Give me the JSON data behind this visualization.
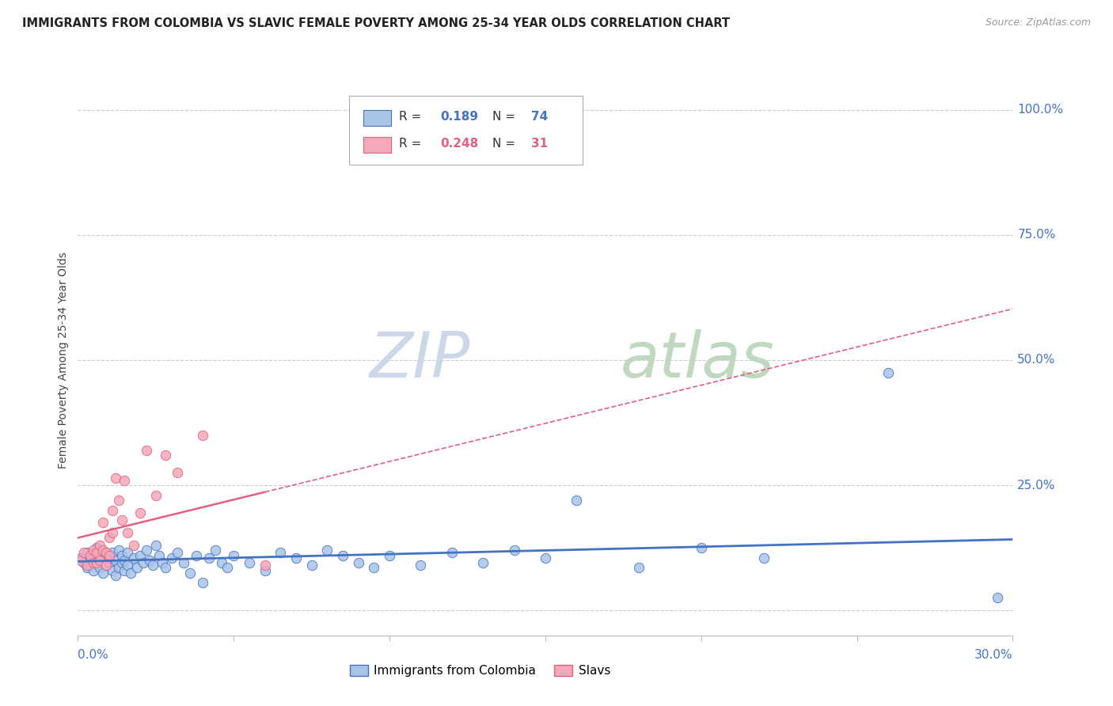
{
  "title": "IMMIGRANTS FROM COLOMBIA VS SLAVIC FEMALE POVERTY AMONG 25-34 YEAR OLDS CORRELATION CHART",
  "source": "Source: ZipAtlas.com",
  "ylabel": "Female Poverty Among 25-34 Year Olds",
  "xlim": [
    0.0,
    0.3
  ],
  "ylim": [
    -0.05,
    1.05
  ],
  "colombia_color": "#aac4e8",
  "slavs_color": "#f4a8b8",
  "colombia_edge_color": "#4472c4",
  "slavs_edge_color": "#e06080",
  "colombia_line_color": "#4472c4",
  "slavs_line_color": "#e06080",
  "yticks": [
    0.0,
    0.25,
    0.5,
    0.75,
    1.0
  ],
  "ytick_labels": [
    "",
    "25.0%",
    "50.0%",
    "75.0%",
    "100.0%"
  ],
  "grid_color": "#cccccc",
  "background_color": "#ffffff",
  "watermark_zip": "ZIP",
  "watermark_atlas": "atlas",
  "watermark_color_zip": "#d0dce8",
  "watermark_color_atlas": "#c8d8c8",
  "colombia_x": [
    0.001,
    0.002,
    0.003,
    0.003,
    0.004,
    0.004,
    0.005,
    0.005,
    0.006,
    0.006,
    0.007,
    0.007,
    0.008,
    0.008,
    0.009,
    0.009,
    0.01,
    0.01,
    0.011,
    0.011,
    0.012,
    0.012,
    0.013,
    0.013,
    0.014,
    0.014,
    0.015,
    0.015,
    0.016,
    0.016,
    0.017,
    0.018,
    0.019,
    0.02,
    0.021,
    0.022,
    0.023,
    0.024,
    0.025,
    0.026,
    0.027,
    0.028,
    0.03,
    0.032,
    0.034,
    0.036,
    0.038,
    0.04,
    0.042,
    0.044,
    0.046,
    0.048,
    0.05,
    0.055,
    0.06,
    0.065,
    0.07,
    0.075,
    0.08,
    0.085,
    0.09,
    0.095,
    0.1,
    0.11,
    0.12,
    0.13,
    0.14,
    0.15,
    0.16,
    0.18,
    0.2,
    0.22,
    0.26,
    0.295
  ],
  "colombia_y": [
    0.105,
    0.095,
    0.085,
    0.115,
    0.1,
    0.09,
    0.11,
    0.08,
    0.125,
    0.095,
    0.085,
    0.105,
    0.075,
    0.115,
    0.09,
    0.11,
    0.095,
    0.105,
    0.08,
    0.115,
    0.07,
    0.1,
    0.085,
    0.12,
    0.095,
    0.11,
    0.08,
    0.1,
    0.09,
    0.115,
    0.075,
    0.105,
    0.085,
    0.11,
    0.095,
    0.12,
    0.1,
    0.09,
    0.13,
    0.11,
    0.095,
    0.085,
    0.105,
    0.115,
    0.095,
    0.075,
    0.11,
    0.055,
    0.105,
    0.12,
    0.095,
    0.085,
    0.11,
    0.095,
    0.08,
    0.115,
    0.105,
    0.09,
    0.12,
    0.11,
    0.095,
    0.085,
    0.11,
    0.09,
    0.115,
    0.095,
    0.12,
    0.105,
    0.22,
    0.085,
    0.125,
    0.105,
    0.475,
    0.025
  ],
  "slavs_x": [
    0.001,
    0.002,
    0.003,
    0.004,
    0.005,
    0.005,
    0.006,
    0.006,
    0.007,
    0.007,
    0.008,
    0.008,
    0.009,
    0.009,
    0.01,
    0.01,
    0.011,
    0.011,
    0.012,
    0.013,
    0.014,
    0.015,
    0.016,
    0.018,
    0.02,
    0.022,
    0.025,
    0.028,
    0.032,
    0.04,
    0.06
  ],
  "slavs_y": [
    0.1,
    0.115,
    0.09,
    0.11,
    0.095,
    0.12,
    0.095,
    0.115,
    0.1,
    0.13,
    0.12,
    0.175,
    0.115,
    0.09,
    0.11,
    0.145,
    0.2,
    0.155,
    0.265,
    0.22,
    0.18,
    0.26,
    0.155,
    0.13,
    0.195,
    0.32,
    0.23,
    0.31,
    0.275,
    0.35,
    0.09
  ],
  "colombia_R": 0.189,
  "colombia_N": 74,
  "slavs_R": 0.248,
  "slavs_N": 31
}
